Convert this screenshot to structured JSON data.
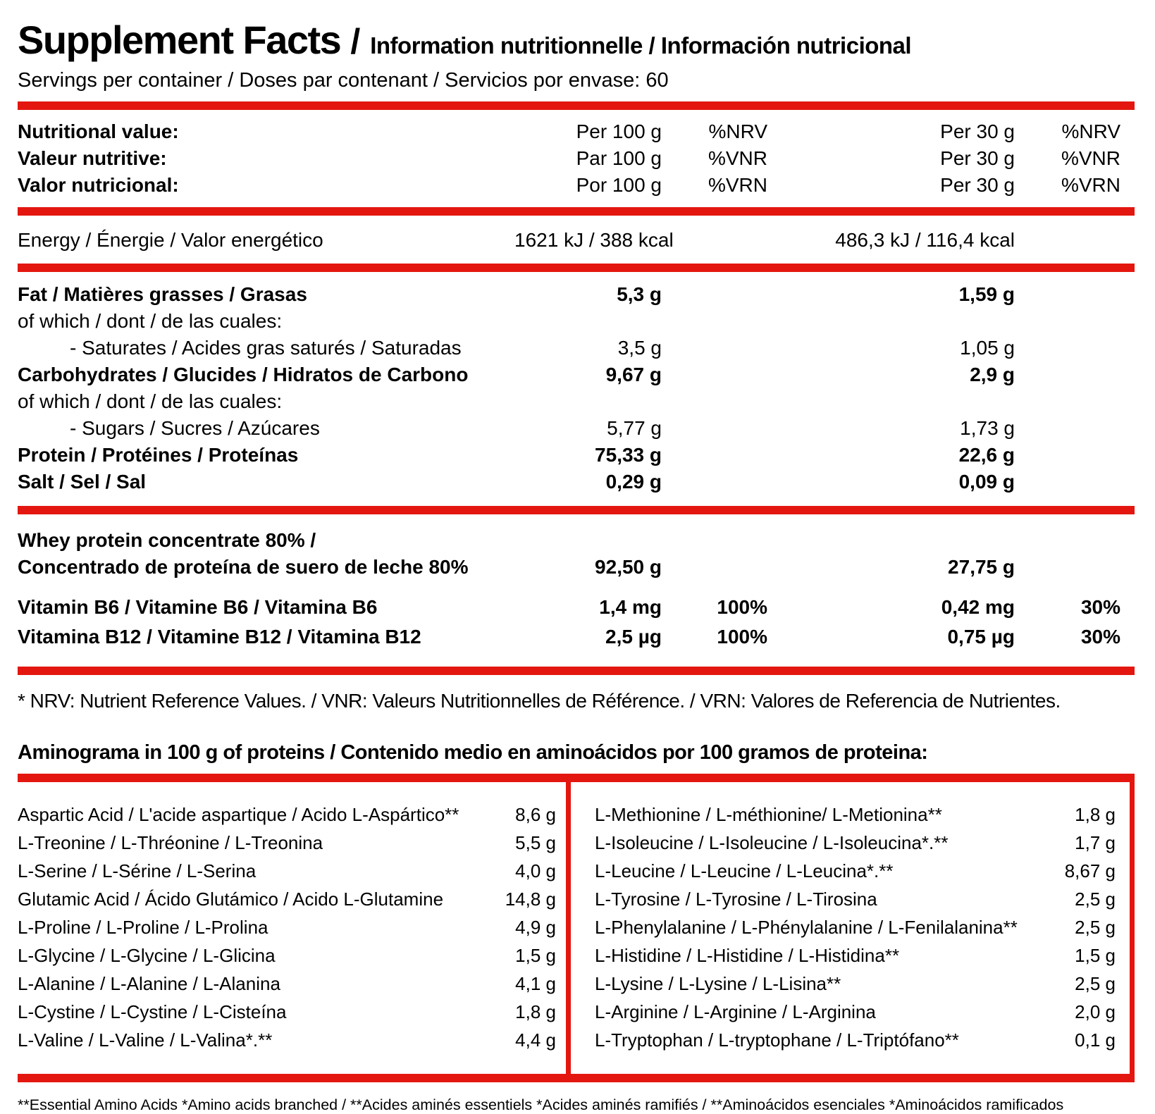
{
  "colors": {
    "accent": "#e3170f"
  },
  "header": {
    "title_primary": "Supplement Facts",
    "title_separator": "/",
    "title_secondary": "Information nutritionnelle / Información nutricional",
    "servings_line": "Servings per container / Doses par contenant / Servicios por envase: 60"
  },
  "columns_header": {
    "rows": [
      {
        "label": "Nutritional value:",
        "per100": "Per 100 g",
        "nrv100": "%NRV",
        "per30": "Per 30 g",
        "nrv30": "%NRV"
      },
      {
        "label": "Valeur nutritive:",
        "per100": "Par 100 g",
        "nrv100": "%VNR",
        "per30": "Per 30 g",
        "nrv30": "%VNR"
      },
      {
        "label": "Valor nutricional:",
        "per100": "Por 100 g",
        "nrv100": "%VRN",
        "per30": "Per 30 g",
        "nrv30": "%VRN"
      }
    ]
  },
  "energy_row": {
    "label": "Energy / Énergie / Valor energético",
    "per100": "1621 kJ / 388 kcal",
    "per30": "486,3 kJ / 116,4 kcal"
  },
  "nutrient_rows": [
    {
      "label": "Fat / Matières grasses / Grasas",
      "per100": "5,3 g",
      "per30": "1,59 g"
    },
    {
      "label": "of which / dont / de las cuales:",
      "per100": "",
      "per30": ""
    },
    {
      "label": "- Saturates / Acides gras saturés / Saturadas",
      "per100": "3,5 g",
      "per30": "1,05 g"
    },
    {
      "label": "Carbohydrates / Glucides / Hidratos de Carbono",
      "per100": "9,67 g",
      "per30": "2,9 g"
    },
    {
      "label": "of which / dont / de las cuales:",
      "per100": "",
      "per30": ""
    },
    {
      "label": "- Sugars / Sucres / Azúcares",
      "per100": "5,77 g",
      "per30": "1,73 g"
    },
    {
      "label": "Protein / Protéines / Proteínas",
      "per100": "75,33 g",
      "per30": "22,6 g"
    },
    {
      "label": "Salt / Sel / Sal",
      "per100": "0,29 g",
      "per30": "0,09 g"
    }
  ],
  "whey_row": {
    "label_line1": "Whey protein concentrate 80% /",
    "label_line2": "Concentrado de proteína de suero de leche 80%",
    "per100": "92,50 g",
    "per30": "27,75 g"
  },
  "vitamin_rows": [
    {
      "label": "Vitamin B6 / Vitamine B6 / Vitamina B6",
      "per100": "1,4 mg",
      "nrv100": "100%",
      "per30": "0,42 mg",
      "nrv30": "30%"
    },
    {
      "label": "Vitamina B12 / Vitamine B12 / Vitamina B12",
      "per100": "2,5 µg",
      "nrv100": "100%",
      "per30": "0,75 µg",
      "nrv30": "30%"
    }
  ],
  "nrv_note": "* NRV: Nutrient Reference Values. / VNR: Valeurs Nutritionnelles de Référence. / VRN: Valores de Referencia de Nutrientes.",
  "aminogram": {
    "heading": "Aminograma in 100 g of proteins / Contenido medio en aminoácidos por 100 gramos de proteina:",
    "left": [
      {
        "label": "Aspartic Acid / L'acide aspartique / Acido L-Aspártico**",
        "value": "8,6 g"
      },
      {
        "label": "L-Treonine / L-Thréonine / L-Treonina",
        "value": "5,5 g"
      },
      {
        "label": "L-Serine / L-Sérine / L-Serina",
        "value": "4,0 g"
      },
      {
        "label": "Glutamic Acid / Ácido Glutámico / Acido L-Glutamine",
        "value": "14,8 g"
      },
      {
        "label": "L-Proline / L-Proline / L-Prolina",
        "value": "4,9 g"
      },
      {
        "label": "L-Glycine / L-Glycine / L-Glicina",
        "value": "1,5 g"
      },
      {
        "label": "L-Alanine / L-Alanine / L-Alanina",
        "value": "4,1 g"
      },
      {
        "label": "L-Cystine / L-Cystine / L-Cisteína",
        "value": "1,8 g"
      },
      {
        "label": "L-Valine / L-Valine / L-Valina*.**",
        "value": "4,4 g"
      }
    ],
    "right": [
      {
        "label": "L-Methionine / L-méthionine/ L-Metionina**",
        "value": "1,8 g"
      },
      {
        "label": "L-Isoleucine / L-Isoleucine / L-Isoleucina*.**",
        "value": "1,7 g"
      },
      {
        "label": "L-Leucine / L-Leucine / L-Leucina*.**",
        "value": "8,67 g"
      },
      {
        "label": "L-Tyrosine / L-Tyrosine / L-Tirosina",
        "value": "2,5 g"
      },
      {
        "label": "L-Phenylalanine / L-Phénylalanine / L-Fenilalanina**",
        "value": "2,5 g"
      },
      {
        "label": "L-Histidine / L-Histidine / L-Histidina**",
        "value": "1,5 g"
      },
      {
        "label": "L-Lysine / L-Lysine / L-Lisina**",
        "value": "2,5 g"
      },
      {
        "label": "L-Arginine / L-Arginine / L-Arginina",
        "value": "2,0 g"
      },
      {
        "label": "L-Tryptophan / L-tryptophane / L-Triptófano**",
        "value": "0,1 g"
      }
    ]
  },
  "footnote": "**Essential Amino Acids *Amino acids branched  / **Acides aminés essentiels *Acides aminés ramifiés /  **Aminoácidos esenciales  *Aminoácidos ramificados"
}
